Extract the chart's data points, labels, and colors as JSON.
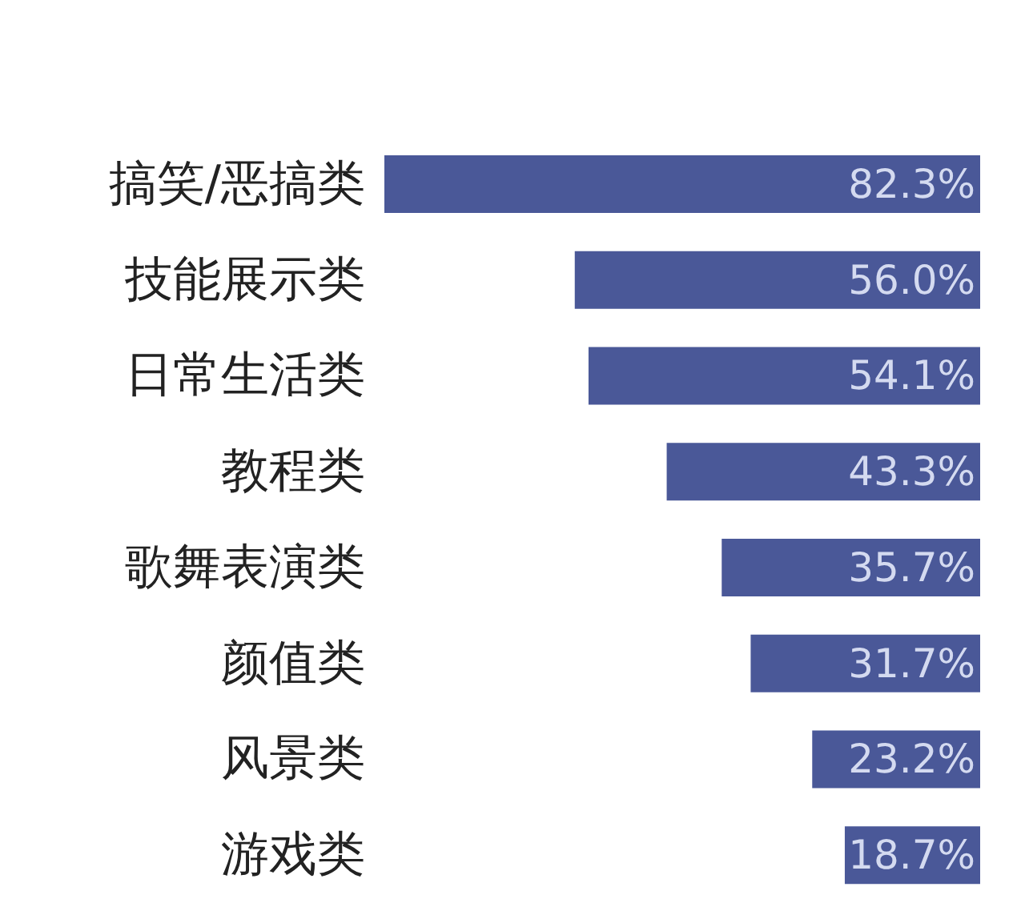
{
  "chart_data": {
    "type": "bar",
    "orientation": "horizontal",
    "categories": [
      "搞笑/恶搞类",
      "技能展示类",
      "日常生活类",
      "教程类",
      "歌舞表演类",
      "颜值类",
      "风景类",
      "游戏类"
    ],
    "values": [
      82.3,
      56.0,
      54.1,
      43.3,
      35.7,
      31.7,
      23.2,
      18.7
    ],
    "value_labels": [
      "82.3%",
      "56.0%",
      "54.1%",
      "43.3%",
      "35.7%",
      "31.7%",
      "23.2%",
      "18.7%"
    ],
    "color": "#4a5898"
  }
}
